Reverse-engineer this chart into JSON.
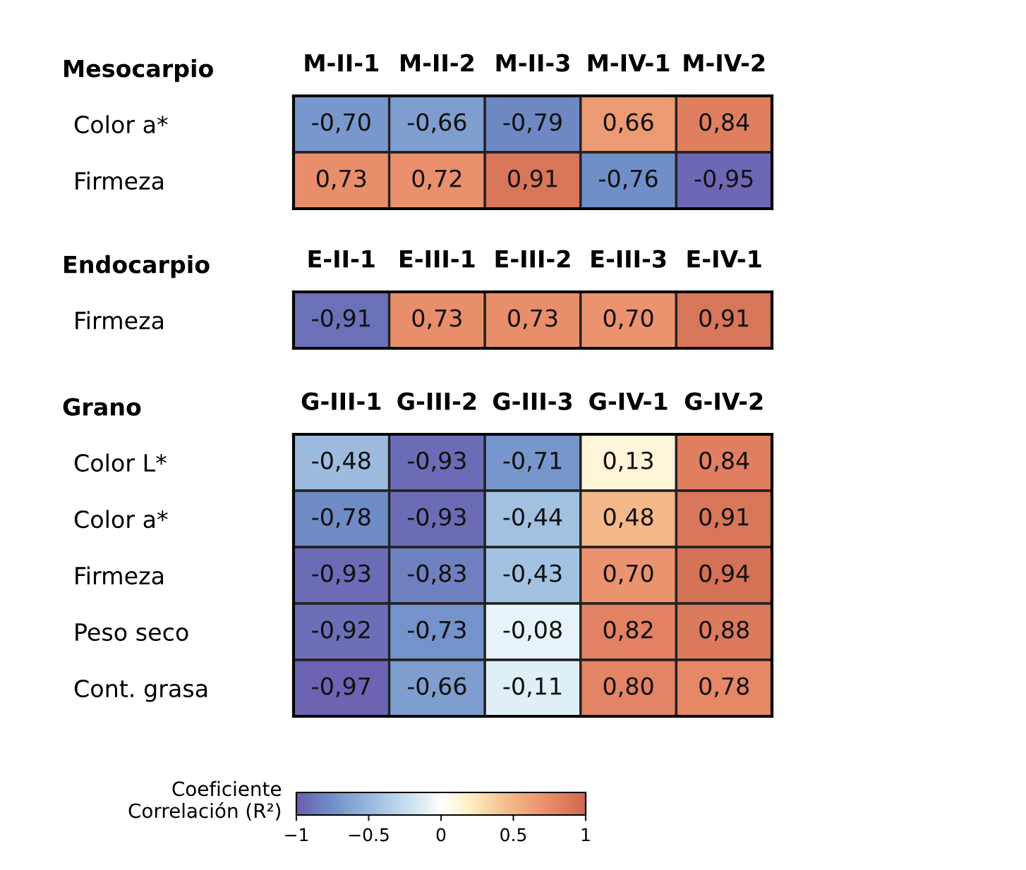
{
  "chart_data": [
    {
      "type": "heatmap",
      "title": "Mesocarpio",
      "categories": [
        "M-II-1",
        "M-II-2",
        "M-II-3",
        "M-IV-1",
        "M-IV-2"
      ],
      "y_categories": [
        "Color a*",
        "Firmeza"
      ],
      "cells": [
        [
          -0.7,
          -0.66,
          -0.79,
          0.66,
          0.84
        ],
        [
          0.73,
          0.72,
          0.91,
          -0.76,
          -0.95
        ]
      ],
      "cell_labels": [
        [
          "-0,70",
          "-0,66",
          "-0,79",
          "0,66",
          "0,84"
        ],
        [
          "0,73",
          "0,72",
          "0,91",
          "-0,76",
          "-0,95"
        ]
      ]
    },
    {
      "type": "heatmap",
      "title": "Endocarpio",
      "categories": [
        "E-II-1",
        "E-III-1",
        "E-III-2",
        "E-III-3",
        "E-IV-1"
      ],
      "y_categories": [
        "Firmeza"
      ],
      "cells": [
        [
          -0.91,
          0.73,
          0.73,
          0.7,
          0.91
        ]
      ],
      "cell_labels": [
        [
          "-0,91",
          "0,73",
          "0,73",
          "0,70",
          "0,91"
        ]
      ]
    },
    {
      "type": "heatmap",
      "title": "Grano",
      "categories": [
        "G-III-1",
        "G-III-2",
        "G-III-3",
        "G-IV-1",
        "G-IV-2"
      ],
      "y_categories": [
        "Color L*",
        "Color a*",
        "Firmeza",
        "Peso seco",
        "Cont. grasa"
      ],
      "cells": [
        [
          -0.48,
          -0.93,
          -0.71,
          0.13,
          0.84
        ],
        [
          -0.78,
          -0.93,
          -0.44,
          0.48,
          0.91
        ],
        [
          -0.93,
          -0.83,
          -0.43,
          0.7,
          0.94
        ],
        [
          -0.92,
          -0.73,
          -0.08,
          0.82,
          0.88
        ],
        [
          -0.97,
          -0.66,
          -0.11,
          0.8,
          0.78
        ]
      ],
      "cell_labels": [
        [
          "-0,48",
          "-0,93",
          "-0,71",
          "0,13",
          "0,84"
        ],
        [
          "-0,78",
          "-0,93",
          "-0,44",
          "0,48",
          "0,91"
        ],
        [
          "-0,93",
          "-0,83",
          "-0,43",
          "0,70",
          "0,94"
        ],
        [
          "-0,92",
          "-0,73",
          "-0,08",
          "0,82",
          "0,88"
        ],
        [
          "-0,97",
          "-0,66",
          "-0,11",
          "0,80",
          "0,78"
        ]
      ],
      "clabel": "Coeficiente\nCorrelación (R²)",
      "clim": [
        -1,
        1
      ],
      "cticks": [
        {
          "value": -1,
          "label": "−1"
        },
        {
          "value": -0.5,
          "label": "−0.5"
        },
        0,
        0.5,
        1
      ]
    }
  ]
}
